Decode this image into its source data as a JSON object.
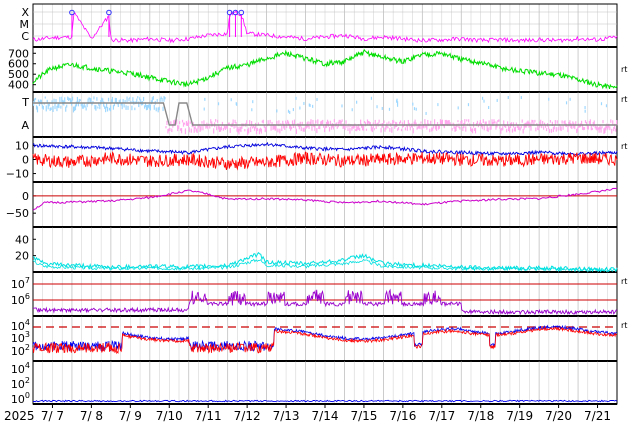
{
  "colors": {
    "xray": "#ff00ff",
    "wind_speed": "#00dd00",
    "density_T": "#9fd8ff",
    "density_A": "#ffa8ee",
    "density_line": "#888888",
    "bt": "#0000dd",
    "bz": "#ff0000",
    "dst": "#cc00cc",
    "kp": "#00e0e0",
    "electron": "#9900cc",
    "proton_blue": "#0000ee",
    "proton_red": "#ff0000",
    "threshold": "#cc0000",
    "grid": "#c0c0c0"
  },
  "x_axis": {
    "year_label": "2025",
    "dates": [
      "7/ 7",
      "7/ 8",
      "7/ 9",
      "7/10",
      "7/11",
      "7/12",
      "7/13",
      "7/14",
      "7/15",
      "7/16",
      "7/17",
      "7/18",
      "7/19",
      "7/20",
      "7/21"
    ]
  },
  "chart_data": [
    {
      "panel": "xray",
      "type": "line",
      "y_labels": [
        "X",
        "M",
        "C"
      ],
      "x_range": [
        0,
        15
      ],
      "events_x": [
        1.0,
        1.95,
        5.05,
        5.2,
        5.35
      ],
      "series": [
        {
          "x": [
            0,
            0.5,
            1.0,
            1.05,
            1.5,
            1.95,
            2.0,
            2.5,
            3.0,
            3.5,
            4.0,
            4.5,
            5.0,
            5.05,
            5.2,
            5.35,
            5.5,
            6.0,
            6.5,
            7.0,
            7.5,
            8.0,
            8.5,
            9.0,
            9.5,
            10.0,
            10.5,
            11.0,
            11.5,
            12.0,
            12.5,
            13.0,
            13.5,
            14.0,
            14.5,
            15.0
          ],
          "y": [
            0.12,
            0.18,
            0.2,
            0.9,
            0.15,
            0.8,
            0.12,
            0.1,
            0.15,
            0.1,
            0.15,
            0.25,
            0.3,
            0.85,
            0.9,
            0.85,
            0.3,
            0.25,
            0.2,
            0.15,
            0.2,
            0.25,
            0.15,
            0.2,
            0.15,
            0.1,
            0.12,
            0.15,
            0.1,
            0.12,
            0.1,
            0.12,
            0.1,
            0.15,
            0.12,
            0.2
          ]
        }
      ]
    },
    {
      "panel": "solar-wind-speed",
      "type": "line",
      "y_ticks": [
        400,
        500,
        600,
        700
      ],
      "ylim": [
        330,
        760
      ],
      "right_label": "rt",
      "series": [
        {
          "x": [
            0,
            0.5,
            1.0,
            1.5,
            2.0,
            2.5,
            3.0,
            3.5,
            4.0,
            4.5,
            5.0,
            5.5,
            6.0,
            6.5,
            7.0,
            7.5,
            8.0,
            8.5,
            9.0,
            9.5,
            10.0,
            10.5,
            11.0,
            11.5,
            12.0,
            12.5,
            13.0,
            13.5,
            14.0,
            14.5,
            15.0
          ],
          "y": [
            430,
            560,
            590,
            560,
            530,
            510,
            470,
            430,
            400,
            470,
            560,
            590,
            650,
            700,
            650,
            600,
            620,
            710,
            660,
            620,
            690,
            700,
            640,
            610,
            560,
            530,
            510,
            500,
            450,
            400,
            370
          ]
        }
      ]
    },
    {
      "panel": "solar-wind-density",
      "type": "line",
      "y_labels": [
        "T",
        "A"
      ],
      "right_label": "rt"
    },
    {
      "panel": "imf",
      "type": "line",
      "y_ticks": [
        -10,
        0,
        10
      ],
      "ylim": [
        -16,
        16
      ],
      "right_label": "rt",
      "series": [
        {
          "x": [
            0,
            1,
            2,
            3,
            4,
            5,
            6,
            7,
            8,
            9,
            10,
            11,
            12,
            13,
            14,
            15
          ],
          "y": [
            10,
            9,
            8,
            6,
            5,
            9,
            11,
            8,
            7,
            9,
            6,
            5,
            4,
            5,
            4,
            5
          ]
        },
        {
          "x": [
            0,
            1,
            2,
            3,
            4,
            5,
            6,
            7,
            8,
            9,
            10,
            11,
            12,
            13,
            14,
            15
          ],
          "y": [
            0,
            -2,
            1,
            -1,
            0,
            -3,
            -2,
            1,
            -1,
            0,
            1,
            0,
            -1,
            0,
            1,
            0
          ]
        }
      ]
    },
    {
      "panel": "dst",
      "type": "line",
      "y_ticks": [
        -50,
        0
      ],
      "ylim": [
        -90,
        40
      ],
      "series": [
        {
          "x": [
            0,
            0.3,
            1,
            2,
            3,
            4,
            4.5,
            5,
            6,
            7,
            8,
            9,
            10,
            11,
            12,
            13,
            14,
            15
          ],
          "y": [
            -40,
            -20,
            -18,
            -15,
            -5,
            15,
            5,
            -10,
            -8,
            -12,
            -20,
            -15,
            -25,
            -15,
            -10,
            -8,
            5,
            20
          ]
        }
      ]
    },
    {
      "panel": "kp",
      "type": "line",
      "y_ticks": [
        20,
        40
      ],
      "ylim": [
        0,
        55
      ],
      "series": [
        {
          "x": [
            0,
            0.3,
            1,
            2,
            3,
            4,
            5,
            5.8,
            6,
            7,
            8,
            8.5,
            9,
            10,
            11,
            12,
            13,
            14,
            15
          ],
          "y": [
            18,
            10,
            8,
            6,
            7,
            6,
            8,
            22,
            12,
            10,
            15,
            20,
            10,
            8,
            6,
            5,
            5,
            4,
            3
          ]
        }
      ]
    },
    {
      "panel": "electron-flux",
      "type": "line",
      "y_tick_exponents": [
        "6",
        "7"
      ],
      "right_label": "rt"
    },
    {
      "panel": "proton-flux",
      "type": "line",
      "y_tick_exponents": [
        "2",
        "3",
        "4"
      ],
      "right_label": "rt"
    },
    {
      "panel": "bottom",
      "type": "line",
      "y_tick_exponents": [
        "0",
        "2",
        "4"
      ]
    }
  ]
}
